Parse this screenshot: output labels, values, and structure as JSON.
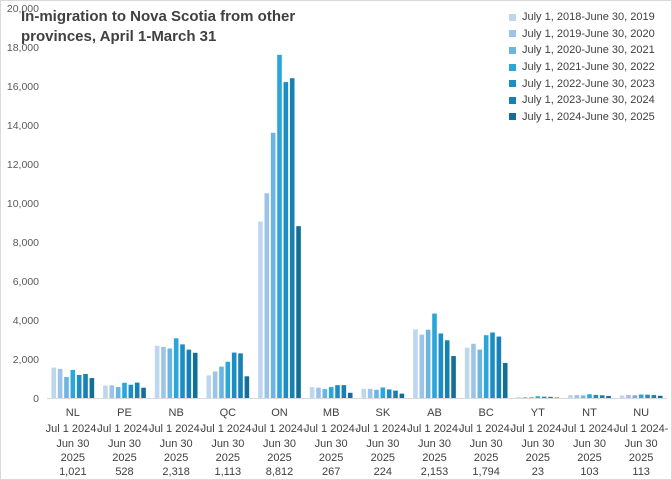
{
  "chart_data": {
    "type": "bar",
    "title_line1": "In-migration to Nova Scotia from other",
    "title_line2": "provinces, April 1-March 31",
    "ylim": [
      0,
      20000
    ],
    "yticks": [
      "0",
      "2,000",
      "4,000",
      "6,000",
      "8,000",
      "10,000",
      "12,000",
      "14,000",
      "16,000",
      "18,000",
      "20,000"
    ],
    "colors": [
      "#bdd7ee",
      "#9dc3e6",
      "#6bb5e2",
      "#2aa6d9",
      "#1b8fc4",
      "#1781b3",
      "#136f98"
    ],
    "series": [
      {
        "name": "July 1, 2018-June 30, 2019"
      },
      {
        "name": "July 1, 2019-June 30, 2020"
      },
      {
        "name": "July 1, 2020-June 30, 2021"
      },
      {
        "name": "July 1, 2021-June 30, 2022"
      },
      {
        "name": "July 1, 2022-June 30, 2023"
      },
      {
        "name": "July 1, 2023-June 30, 2024"
      },
      {
        "name": "July 1, 2024-June 30, 2025"
      }
    ],
    "categories": [
      {
        "code": "NL",
        "label_lines": [
          "NL",
          "Jul 1 2024-",
          "Jun 30",
          "2025",
          "1,021"
        ],
        "values": [
          1560,
          1490,
          1080,
          1440,
          1180,
          1230,
          1021
        ]
      },
      {
        "code": "PE",
        "label_lines": [
          "PE",
          "Jul 1 2024-",
          "Jun 30",
          "2025",
          "528"
        ],
        "values": [
          640,
          650,
          560,
          780,
          680,
          790,
          528
        ]
      },
      {
        "code": "NB",
        "label_lines": [
          "NB",
          "Jul 1 2024-",
          "Jun 30",
          "2025",
          "2,318"
        ],
        "values": [
          2680,
          2620,
          2540,
          3060,
          2750,
          2480,
          2318
        ]
      },
      {
        "code": "QC",
        "label_lines": [
          "QC",
          "Jul 1 2024-",
          "Jun 30",
          "2025",
          "1,113"
        ],
        "values": [
          1160,
          1360,
          1610,
          1860,
          2330,
          2290,
          1113
        ]
      },
      {
        "code": "ON",
        "label_lines": [
          "ON",
          "Jul 1 2024-",
          "Jun 30",
          "2025",
          "8,812"
        ],
        "values": [
          9050,
          10500,
          13600,
          17600,
          16200,
          16400,
          8812
        ]
      },
      {
        "code": "MB",
        "label_lines": [
          "MB",
          "Jul 1 2024-",
          "Jun 30",
          "2025",
          "267"
        ],
        "values": [
          560,
          530,
          460,
          560,
          660,
          660,
          267
        ]
      },
      {
        "code": "SK",
        "label_lines": [
          "SK",
          "Jul 1 2024-",
          "Jun 30",
          "2025",
          "224"
        ],
        "values": [
          470,
          470,
          420,
          540,
          440,
          380,
          224
        ]
      },
      {
        "code": "AB",
        "label_lines": [
          "AB",
          "Jul 1 2024-",
          "Jun 30",
          "2025",
          "2,153"
        ],
        "values": [
          3520,
          3250,
          3500,
          4330,
          3310,
          2960,
          2153
        ]
      },
      {
        "code": "BC",
        "label_lines": [
          "BC",
          "Jul 1 2024-",
          "Jun 30",
          "2025",
          "1,794"
        ],
        "values": [
          2580,
          2780,
          2480,
          3220,
          3360,
          3150,
          1794
        ]
      },
      {
        "code": "YT",
        "label_lines": [
          "YT",
          "Jul 1 2024-",
          "Jun 30",
          "2025",
          "23"
        ],
        "values": [
          40,
          50,
          40,
          90,
          70,
          60,
          23
        ]
      },
      {
        "code": "NT",
        "label_lines": [
          "NT",
          "Jul 1 2024-",
          "Jun 30",
          "2025",
          "103"
        ],
        "values": [
          150,
          150,
          130,
          190,
          160,
          140,
          103
        ]
      },
      {
        "code": "NU",
        "label_lines": [
          "NU",
          "Jul 1 2024-",
          "Jun 30",
          "2025",
          "113"
        ],
        "values": [
          130,
          150,
          140,
          180,
          170,
          150,
          113
        ]
      }
    ]
  }
}
